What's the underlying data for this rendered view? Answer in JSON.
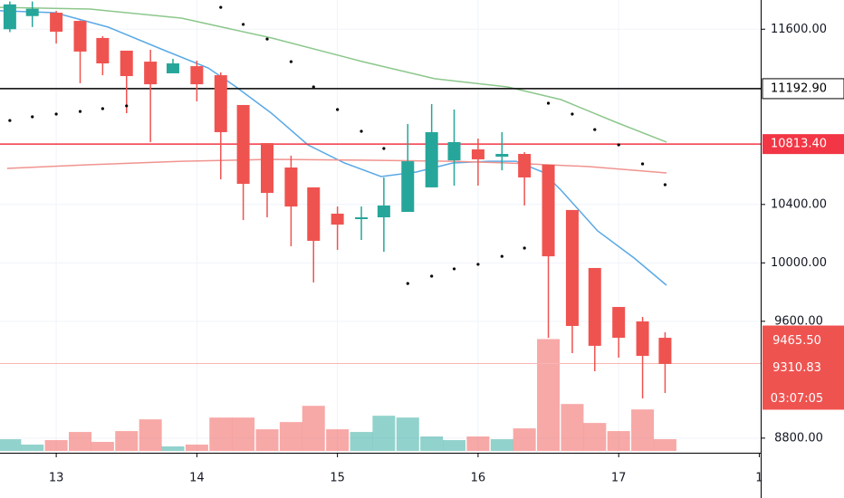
{
  "chart_data": {
    "type": "candlestick",
    "x": [
      12.67,
      12.83,
      13,
      13.17,
      13.33,
      13.5,
      13.67,
      13.83,
      14,
      14.17,
      14.33,
      14.5,
      14.67,
      14.83,
      15,
      15.17,
      15.33,
      15.5,
      15.67,
      15.83,
      16,
      16.17,
      16.33,
      16.5,
      16.67,
      16.83,
      17,
      17.17,
      17.33
    ],
    "open": [
      11600,
      11690,
      11713,
      11657,
      11540,
      11453,
      11378,
      11298,
      11347,
      11285,
      11081,
      10820,
      10653,
      10517,
      10337,
      10300,
      10312,
      10349,
      10517,
      10702,
      10777,
      10727,
      10746,
      10672,
      10362,
      9965,
      9698,
      9599,
      9487
    ],
    "high": [
      11790,
      11790,
      11725,
      11660,
      11552,
      11453,
      11459,
      11397,
      11385,
      11304,
      11081,
      10820,
      10734,
      10517,
      10386,
      10386,
      10585,
      10951,
      11087,
      11050,
      10851,
      10895,
      10758,
      10672,
      10362,
      9965,
      9698,
      9630,
      9525
    ],
    "low": [
      11580,
      11615,
      11502,
      11230,
      11285,
      11025,
      10827,
      11298,
      11106,
      10572,
      10293,
      10312,
      10114,
      9866,
      10089,
      10157,
      10076,
      10349,
      10517,
      10529,
      10529,
      10634,
      10393,
      9487,
      9382,
      9258,
      9351,
      9072,
      9109
    ],
    "close": [
      11770,
      11740,
      11583,
      11447,
      11366,
      11279,
      11223,
      11366,
      11223,
      10895,
      10541,
      10479,
      10386,
      10151,
      10262,
      10312,
      10393,
      10696,
      10895,
      10827,
      10709,
      10746,
      10585,
      10045,
      9568,
      9432,
      9487,
      9363,
      9308
    ],
    "volume": [
      13,
      7,
      12,
      21,
      10,
      22,
      35,
      5,
      7,
      37,
      37,
      24,
      32,
      50,
      24,
      21,
      39,
      37,
      16,
      12,
      16,
      13,
      25,
      124,
      52,
      31,
      22,
      46,
      13
    ],
    "volume_lim": [
      0,
      500
    ],
    "up_color": "#26a69a",
    "down_color": "#ef5350",
    "series": [
      {
        "color": "#5aa9e6",
        "x": [
          12.6,
          12.99,
          13.37,
          13.76,
          14.08,
          14.27,
          14.53,
          14.79,
          15.05,
          15.31,
          15.56,
          15.82,
          16.08,
          16.27,
          16.46,
          16.59,
          16.85,
          17.11,
          17.34
        ],
        "values": [
          11726,
          11713,
          11614,
          11459,
          11335,
          11211,
          11025,
          10808,
          10684,
          10591,
          10622,
          10684,
          10696,
          10696,
          10622,
          10498,
          10219,
          10033,
          9847
        ]
      },
      {
        "color": "#8cc78c",
        "x": [
          12.6,
          13.24,
          13.89,
          14.53,
          15.18,
          15.69,
          16.21,
          16.59,
          16.98,
          17.34
        ],
        "values": [
          11750,
          11738,
          11676,
          11540,
          11378,
          11261,
          11205,
          11118,
          10963,
          10827
        ]
      },
      {
        "color": "#f0948f",
        "x": [
          12.65,
          13.24,
          13.89,
          14.53,
          15.18,
          15.82,
          16.21,
          16.79,
          17.34
        ],
        "values": [
          10647,
          10672,
          10696,
          10709,
          10703,
          10696,
          10684,
          10659,
          10616
        ]
      }
    ],
    "sar": [
      10975,
      11000,
      11019,
      11037,
      11056,
      11075,
      null,
      null,
      null,
      11750,
      11633,
      11533,
      11378,
      11205,
      11050,
      10901,
      10783,
      9859,
      9909,
      9959,
      9990,
      10045,
      10101,
      11093,
      11019,
      10913,
      10808,
      10678,
      10535
    ],
    "levels": [
      {
        "value": 11192.9,
        "label": "11192.90",
        "color": "#000000"
      },
      {
        "value": 10813.4,
        "label": "10813.40",
        "color": "#f23645"
      },
      {
        "value": 9310.83,
        "label": "9310.83",
        "color": "#f7b5b3"
      }
    ],
    "side_labels": [
      {
        "value": 9465.5,
        "label": "9465.50"
      }
    ],
    "countdown": "03:07:05",
    "xlim": [
      12.6,
      18.01
    ],
    "ylim": [
      8700,
      11800
    ],
    "xticks": [
      13,
      14,
      15,
      16,
      17,
      {
        "value": 18,
        "label": "1"
      }
    ],
    "yticks": [
      {
        "value": 8800,
        "label": "8800.00"
      },
      {
        "value": 9600,
        "label": "9600.00"
      },
      {
        "value": 10000,
        "label": "10000.00"
      },
      {
        "value": 10400,
        "label": "10400.00"
      },
      {
        "value": 11600,
        "label": "11600.00"
      }
    ],
    "grid": true
  }
}
